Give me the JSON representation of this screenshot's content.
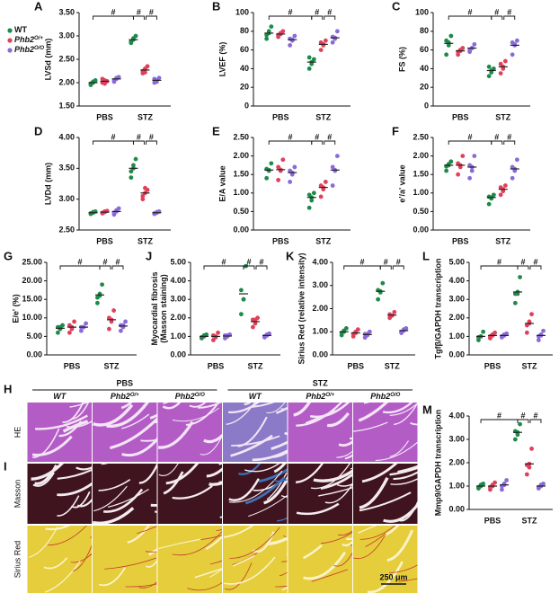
{
  "legend": [
    {
      "name": "WT",
      "color": "#1e8a4a"
    },
    {
      "name": "Phb2",
      "sup": "O/+",
      "color": "#e0405a"
    },
    {
      "name": "Phb2",
      "sup": "O/O",
      "color": "#8a6ad8"
    }
  ],
  "chart_data": [
    {
      "type": "strip",
      "label": "A",
      "ylabel": "LVSd (mm)",
      "categories": [
        "PBS",
        "STZ"
      ],
      "ylim": [
        1.5,
        3.5
      ],
      "yticks": [
        {
          "value": 1.5,
          "label": "1.50"
        },
        {
          "value": 2,
          "label": "2.00"
        },
        {
          "value": 2.5,
          "label": "2.50"
        },
        {
          "value": 3,
          "label": "3.00"
        },
        {
          "value": 3.5,
          "label": "3.50"
        }
      ],
      "annotation": "#",
      "series": [
        {
          "values": [
            2.0,
            2.92
          ],
          "points": [
            [
              1.95,
              2.0,
              2.05,
              1.98,
              2.02
            ],
            [
              2.85,
              2.95,
              3.0,
              2.88,
              2.92
            ]
          ]
        },
        {
          "values": [
            2.03,
            2.27
          ],
          "points": [
            [
              2.0,
              2.05,
              2.03,
              2.08,
              1.98
            ],
            [
              2.2,
              2.3,
              2.35,
              2.25,
              2.22
            ]
          ]
        },
        {
          "values": [
            2.08,
            2.05
          ],
          "points": [
            [
              2.05,
              2.1,
              2.12,
              2.02,
              2.08
            ],
            [
              2.0,
              2.05,
              2.1,
              2.08,
              2.02
            ]
          ]
        }
      ]
    },
    {
      "type": "strip",
      "label": "B",
      "ylabel": "LVEF (%)",
      "categories": [
        "PBS",
        "STZ"
      ],
      "ylim": [
        0,
        100
      ],
      "yticks": [
        0,
        20,
        40,
        60,
        80,
        100
      ],
      "annotation": "#",
      "series": [
        {
          "values": [
            78,
            47
          ],
          "points": [
            [
              72,
              80,
              85,
              76,
              78
            ],
            [
              40,
              45,
              50,
              52,
              47
            ]
          ]
        },
        {
          "values": [
            77,
            66
          ],
          "points": [
            [
              74,
              78,
              80,
              76,
              77
            ],
            [
              60,
              65,
              70,
              68,
              66
            ]
          ]
        },
        {
          "values": [
            71,
            73
          ],
          "points": [
            [
              65,
              70,
              75,
              72,
              71
            ],
            [
              68,
              72,
              80,
              74,
              73
            ]
          ]
        }
      ]
    },
    {
      "type": "strip",
      "label": "C",
      "ylabel": "FS (%)",
      "categories": [
        "PBS",
        "STZ"
      ],
      "ylim": [
        0,
        100
      ],
      "yticks": [
        0,
        20,
        40,
        60,
        80,
        100
      ],
      "annotation": "#",
      "series": [
        {
          "values": [
            67,
            38
          ],
          "points": [
            [
              55,
              65,
              75,
              70,
              68
            ],
            [
              32,
              36,
              40,
              42,
              38
            ]
          ]
        },
        {
          "values": [
            59,
            42
          ],
          "points": [
            [
              55,
              60,
              62,
              58,
              59
            ],
            [
              35,
              40,
              48,
              45,
              42
            ]
          ]
        },
        {
          "values": [
            62,
            65
          ],
          "points": [
            [
              58,
              62,
              66,
              60,
              62
            ],
            [
              55,
              65,
              70,
              68,
              66
            ]
          ]
        }
      ]
    },
    {
      "type": "strip",
      "label": "D",
      "ylabel": "LVDd (mm)",
      "categories": [
        "PBS",
        "STZ"
      ],
      "ylim": [
        2.5,
        4
      ],
      "yticks": [
        {
          "value": 2.5,
          "label": "2.50"
        },
        {
          "value": 3,
          "label": "3.00"
        },
        {
          "value": 3.5,
          "label": "3.50"
        },
        {
          "value": 4,
          "label": "4.00"
        }
      ],
      "annotation": "#",
      "series": [
        {
          "values": [
            2.78,
            3.5
          ],
          "points": [
            [
              2.76,
              2.78,
              2.8,
              2.77,
              2.79
            ],
            [
              3.35,
              3.5,
              3.65,
              3.45,
              3.55
            ]
          ]
        },
        {
          "values": [
            2.79,
            3.1
          ],
          "points": [
            [
              2.77,
              2.8,
              2.81,
              2.78,
              2.79
            ],
            [
              3.0,
              3.1,
              3.15,
              3.05,
              3.18
            ]
          ]
        },
        {
          "values": [
            2.8,
            2.78
          ],
          "points": [
            [
              2.75,
              2.82,
              2.85,
              2.78,
              2.8
            ],
            [
              2.76,
              2.78,
              2.8,
              2.77,
              2.79
            ]
          ]
        }
      ]
    },
    {
      "type": "strip",
      "label": "E",
      "ylabel": "E/A value",
      "categories": [
        "PBS",
        "STZ"
      ],
      "ylim": [
        0,
        2.5
      ],
      "yticks": [
        {
          "value": 0,
          "label": "0.00"
        },
        {
          "value": 0.5,
          "label": "0.50"
        },
        {
          "value": 1,
          "label": "1.00"
        },
        {
          "value": 1.5,
          "label": "1.50"
        },
        {
          "value": 2,
          "label": "2.00"
        },
        {
          "value": 2.5,
          "label": "2.50"
        }
      ],
      "annotation": "#",
      "series": [
        {
          "values": [
            1.62,
            0.88
          ],
          "points": [
            [
              1.4,
              1.6,
              1.8,
              1.65,
              1.62
            ],
            [
              0.6,
              0.8,
              1.0,
              0.95,
              0.88
            ]
          ]
        },
        {
          "values": [
            1.63,
            1.15
          ],
          "points": [
            [
              1.35,
              1.6,
              1.9,
              1.7,
              1.63
            ],
            [
              0.9,
              1.1,
              1.3,
              1.2,
              1.15
            ]
          ]
        },
        {
          "values": [
            1.55,
            1.62
          ],
          "points": [
            [
              1.3,
              1.5,
              1.7,
              1.6,
              1.55
            ],
            [
              1.2,
              1.6,
              2.0,
              1.7,
              1.62
            ]
          ]
        }
      ]
    },
    {
      "type": "strip",
      "label": "F",
      "ylabel": "e'/a' value",
      "categories": [
        "PBS",
        "STZ"
      ],
      "ylim": [
        0,
        2.5
      ],
      "yticks": [
        {
          "value": 0,
          "label": "0.00"
        },
        {
          "value": 0.5,
          "label": "0.50"
        },
        {
          "value": 1,
          "label": "1.00"
        },
        {
          "value": 1.5,
          "label": "1.50"
        },
        {
          "value": 2,
          "label": "2.00"
        },
        {
          "value": 2.5,
          "label": "2.50"
        }
      ],
      "annotation": "#",
      "series": [
        {
          "values": [
            1.75,
            0.88
          ],
          "points": [
            [
              1.6,
              1.75,
              1.85,
              1.72,
              1.78
            ],
            [
              0.7,
              0.85,
              0.95,
              0.9,
              0.88
            ]
          ]
        },
        {
          "values": [
            1.75,
            1.1
          ],
          "points": [
            [
              1.5,
              1.75,
              2.0,
              1.8,
              1.7
            ],
            [
              0.95,
              1.05,
              1.2,
              1.15,
              1.1
            ]
          ]
        },
        {
          "values": [
            1.7,
            1.65
          ],
          "points": [
            [
              1.4,
              1.6,
              2.0,
              1.75,
              1.7
            ],
            [
              1.4,
              1.6,
              1.9,
              1.7,
              1.65
            ]
          ]
        }
      ]
    },
    {
      "type": "strip",
      "label": "G",
      "ylabel": "E/e' (%)",
      "categories": [
        "PBS",
        "STZ"
      ],
      "ylim": [
        0,
        25
      ],
      "yticks": [
        {
          "value": 0,
          "label": "0.00"
        },
        {
          "value": 5,
          "label": "5.00"
        },
        {
          "value": 10,
          "label": "10.00"
        },
        {
          "value": 15,
          "label": "15.00"
        },
        {
          "value": 20,
          "label": "20.00"
        },
        {
          "value": 25,
          "label": "25.00"
        }
      ],
      "annotation": "#",
      "series": [
        {
          "values": [
            7.2,
            16.2
          ],
          "points": [
            [
              6,
              7,
              8,
              7.5,
              7.5
            ],
            [
              14,
              16,
              19,
              15.5,
              16.5
            ]
          ]
        },
        {
          "values": [
            7.5,
            9.5
          ],
          "points": [
            [
              6,
              7,
              9,
              8,
              7.5
            ],
            [
              7,
              9,
              12,
              10,
              9.5
            ]
          ]
        },
        {
          "values": [
            7.5,
            7.8
          ],
          "points": [
            [
              6.5,
              7.5,
              8.5,
              7.5,
              7.5
            ],
            [
              6.5,
              7.5,
              9,
              8,
              8
            ]
          ]
        }
      ]
    },
    {
      "type": "strip",
      "label": "J",
      "ylabel": [
        "Myocardial fibrosis",
        "(Masson staining)"
      ],
      "categories": [
        "PBS",
        "STZ"
      ],
      "ylim": [
        0,
        5
      ],
      "yticks": [
        {
          "value": 0,
          "label": "0.00"
        },
        {
          "value": 1,
          "label": "1.00"
        },
        {
          "value": 2,
          "label": "2.00"
        },
        {
          "value": 3,
          "label": "3.00"
        },
        {
          "value": 4,
          "label": "4.00"
        },
        {
          "value": 5,
          "label": "5.00"
        }
      ],
      "annotation": "#",
      "series": [
        {
          "values": [
            1.0,
            3.3
          ],
          "points": [
            [
              0.9,
              1.0,
              1.1,
              0.95,
              1.05
            ],
            [
              2.2,
              3.0,
              4.8,
              3.5,
              3.0
            ]
          ]
        },
        {
          "values": [
            1.0,
            1.8
          ],
          "points": [
            [
              0.8,
              1.0,
              1.2,
              1.05,
              0.95
            ],
            [
              1.5,
              1.7,
              2.0,
              1.9,
              1.9
            ]
          ]
        },
        {
          "values": [
            1.02,
            1.05
          ],
          "points": [
            [
              0.9,
              1.0,
              1.1,
              1.05,
              1.05
            ],
            [
              0.95,
              1.05,
              1.15,
              1.0,
              1.1
            ]
          ]
        }
      ]
    },
    {
      "type": "strip",
      "label": "K",
      "ylabel": "Sirius Red (relative intensity)",
      "categories": [
        "PBS",
        "STZ"
      ],
      "ylim": [
        0,
        4
      ],
      "yticks": [
        {
          "value": 0,
          "label": "0.00"
        },
        {
          "value": 1,
          "label": "1.00"
        },
        {
          "value": 2,
          "label": "2.00"
        },
        {
          "value": 3,
          "label": "3.00"
        },
        {
          "value": 4,
          "label": "4.00"
        }
      ],
      "annotation": "#",
      "series": [
        {
          "values": [
            1.0,
            2.75
          ],
          "points": [
            [
              0.85,
              1.0,
              1.15,
              0.95,
              1.05
            ],
            [
              2.4,
              2.7,
              3.1,
              2.8,
              2.75
            ]
          ]
        },
        {
          "values": [
            0.95,
            1.72
          ],
          "points": [
            [
              0.8,
              0.95,
              1.1,
              0.9,
              1.0
            ],
            [
              1.6,
              1.7,
              1.85,
              1.75,
              1.7
            ]
          ]
        },
        {
          "values": [
            0.88,
            1.05
          ],
          "points": [
            [
              0.75,
              0.85,
              1.0,
              0.9,
              0.9
            ],
            [
              0.95,
              1.05,
              1.15,
              1.0,
              1.1
            ]
          ]
        }
      ]
    },
    {
      "type": "strip",
      "label": "L",
      "ylabel": "Tgfβ/GAPDH transcription",
      "categories": [
        "PBS",
        "STZ"
      ],
      "ylim": [
        0,
        5
      ],
      "yticks": [
        {
          "value": 0,
          "label": "0.00"
        },
        {
          "value": 1,
          "label": "1.00"
        },
        {
          "value": 2,
          "label": "2.00"
        },
        {
          "value": 3,
          "label": "3.00"
        },
        {
          "value": 4,
          "label": "4.00"
        },
        {
          "value": 5,
          "label": "5.00"
        }
      ],
      "annotation": "#",
      "series": [
        {
          "values": [
            1.0,
            3.4
          ],
          "points": [
            [
              0.8,
              1.0,
              1.25,
              0.95,
              1.0
            ],
            [
              2.8,
              3.4,
              4.2,
              3.3,
              3.3
            ]
          ]
        },
        {
          "values": [
            1.05,
            1.7
          ],
          "points": [
            [
              0.9,
              1.05,
              1.2,
              1.0,
              1.1
            ],
            [
              1.2,
              1.7,
              2.2,
              1.6,
              1.8
            ]
          ]
        },
        {
          "values": [
            1.05,
            1.05
          ],
          "points": [
            [
              0.95,
              1.05,
              1.15,
              1.0,
              1.1
            ],
            [
              0.8,
              1.05,
              1.3,
              1.0,
              1.1
            ]
          ]
        }
      ]
    },
    {
      "type": "strip",
      "label": "M",
      "ylabel": "Mmp9/GAPDH transcription",
      "categories": [
        "PBS",
        "STZ"
      ],
      "ylim": [
        0,
        4
      ],
      "yticks": [
        {
          "value": 0,
          "label": "0.00"
        },
        {
          "value": 1,
          "label": "1.00"
        },
        {
          "value": 2,
          "label": "2.00"
        },
        {
          "value": 3,
          "label": "3.00"
        },
        {
          "value": 4,
          "label": "4.00"
        }
      ],
      "annotation": "#",
      "series": [
        {
          "values": [
            1.0,
            3.3
          ],
          "points": [
            [
              0.9,
              1.0,
              1.1,
              0.95,
              1.05
            ],
            [
              3.0,
              3.3,
              3.65,
              3.35,
              3.2
            ]
          ]
        },
        {
          "values": [
            1.0,
            1.95
          ],
          "points": [
            [
              0.85,
              1.0,
              1.15,
              0.95,
              1.05
            ],
            [
              1.5,
              1.95,
              2.6,
              1.9,
              1.8
            ]
          ]
        },
        {
          "values": [
            1.05,
            1.0
          ],
          "points": [
            [
              0.85,
              1.05,
              1.25,
              1.0,
              1.1
            ],
            [
              0.9,
              1.0,
              1.1,
              0.95,
              1.05
            ]
          ]
        }
      ]
    }
  ],
  "images": {
    "letters": [
      "H",
      "I"
    ],
    "groups": [
      "PBS",
      "STZ"
    ],
    "columns": [
      {
        "name": "WT"
      },
      {
        "name": "Phb2",
        "sup": "O/+"
      },
      {
        "name": "Phb2",
        "sup": "O/O"
      }
    ],
    "rows": [
      "HE",
      "Masson",
      "Sirius Red"
    ],
    "scale_bar": "250 μm"
  }
}
